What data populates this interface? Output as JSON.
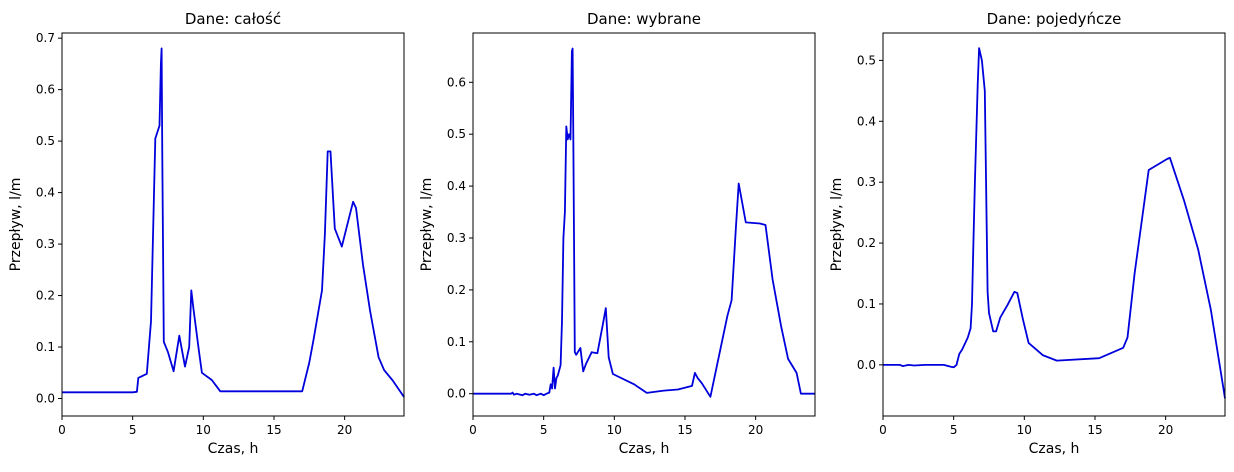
{
  "chart_data": [
    {
      "type": "line",
      "title": "Dane: całość",
      "xlabel": "Czas, h",
      "ylabel": "Przepływ, l/m",
      "xlim": [
        0,
        24.2
      ],
      "ylim": [
        -0.034,
        0.71
      ],
      "xticks": [
        0,
        5,
        10,
        15,
        20
      ],
      "yticks": [
        0.0,
        0.1,
        0.2,
        0.3,
        0.4,
        0.5,
        0.6,
        0.7
      ],
      "ytick_labels": [
        "0.0",
        "0.1",
        "0.2",
        "0.3",
        "0.4",
        "0.5",
        "0.6",
        "0.7"
      ],
      "grid": false,
      "series": [
        {
          "color": "#0000dd",
          "x": [
            0,
            5.0,
            5.3,
            5.4,
            6.0,
            6.3,
            6.6,
            6.9,
            7.0,
            7.05,
            7.1,
            7.2,
            7.5,
            7.9,
            8.3,
            8.7,
            9.0,
            9.15,
            9.3,
            9.7,
            9.9,
            10.6,
            11.2,
            17.0,
            17.5,
            17.8,
            18.4,
            18.6,
            18.8,
            19.0,
            19.1,
            19.3,
            19.8,
            20.3,
            20.6,
            20.8,
            21.3,
            21.8,
            22.4,
            22.8,
            23.4,
            24.2
          ],
          "y": [
            0.012,
            0.012,
            0.013,
            0.04,
            0.048,
            0.15,
            0.505,
            0.53,
            0.65,
            0.68,
            0.47,
            0.11,
            0.09,
            0.053,
            0.122,
            0.062,
            0.1,
            0.21,
            0.175,
            0.09,
            0.05,
            0.036,
            0.014,
            0.014,
            0.07,
            0.115,
            0.21,
            0.32,
            0.48,
            0.48,
            0.43,
            0.33,
            0.295,
            0.35,
            0.382,
            0.37,
            0.26,
            0.17,
            0.08,
            0.055,
            0.035,
            0.003
          ]
        }
      ]
    },
    {
      "type": "line",
      "title": "Dane: wybrane",
      "xlabel": "Czas, h",
      "ylabel": "Przepływ, l/m",
      "xlim": [
        0,
        24.2
      ],
      "ylim": [
        -0.043,
        0.695
      ],
      "xticks": [
        0,
        5,
        10,
        15,
        20
      ],
      "yticks": [
        0.0,
        0.1,
        0.2,
        0.3,
        0.4,
        0.5,
        0.6
      ],
      "ytick_labels": [
        "0.0",
        "0.1",
        "0.2",
        "0.3",
        "0.4",
        "0.5",
        "0.6"
      ],
      "grid": false,
      "series": [
        {
          "color": "#0000dd",
          "x": [
            0,
            2.7,
            2.8,
            2.9,
            3.1,
            3.5,
            3.7,
            4.0,
            4.3,
            4.5,
            4.8,
            5.0,
            5.2,
            5.4,
            5.5,
            5.6,
            5.7,
            5.8,
            5.9,
            6.0,
            6.2,
            6.3,
            6.4,
            6.5,
            6.6,
            6.7,
            6.8,
            6.9,
            7.0,
            7.05,
            7.1,
            7.2,
            7.3,
            7.6,
            7.8,
            8.0,
            8.4,
            8.8,
            9.2,
            9.4,
            9.6,
            9.9,
            11.4,
            12.3,
            13.5,
            14.5,
            15.5,
            15.7,
            15.9,
            16.2,
            16.8,
            18.0,
            18.3,
            18.6,
            18.8,
            19.3,
            20.3,
            20.7,
            21.2,
            21.8,
            22.3,
            22.9,
            23.2,
            24.2
          ],
          "y": [
            0.0,
            0.0,
            0.002,
            -0.002,
            0.0,
            -0.003,
            0.0,
            -0.002,
            0.0,
            -0.003,
            0.0,
            -0.003,
            0.0,
            0.002,
            0.018,
            0.01,
            0.05,
            0.01,
            0.03,
            0.035,
            0.055,
            0.14,
            0.3,
            0.35,
            0.515,
            0.49,
            0.5,
            0.49,
            0.66,
            0.665,
            0.5,
            0.08,
            0.075,
            0.088,
            0.043,
            0.058,
            0.08,
            0.078,
            0.135,
            0.165,
            0.07,
            0.038,
            0.018,
            0.0015,
            0.006,
            0.008,
            0.015,
            0.04,
            0.03,
            0.02,
            -0.006,
            0.15,
            0.18,
            0.32,
            0.405,
            0.33,
            0.328,
            0.325,
            0.22,
            0.13,
            0.067,
            0.04,
            0.0,
            0.0
          ]
        }
      ]
    },
    {
      "type": "line",
      "title": "Dane: pojedyńcze",
      "xlabel": "Czas, h",
      "ylabel": "Przepływ, l/m",
      "xlim": [
        0,
        24.2
      ],
      "ylim": [
        -0.084,
        0.545
      ],
      "xticks": [
        0,
        5,
        10,
        15,
        20
      ],
      "yticks": [
        0.0,
        0.1,
        0.2,
        0.3,
        0.4,
        0.5
      ],
      "ytick_labels": [
        "0.0",
        "0.1",
        "0.2",
        "0.3",
        "0.4",
        "0.5"
      ],
      "grid": false,
      "series": [
        {
          "color": "#0000dd",
          "x": [
            0,
            1.2,
            1.4,
            1.8,
            2.2,
            3.0,
            4.3,
            4.8,
            5.0,
            5.2,
            5.4,
            5.6,
            5.8,
            6.0,
            6.2,
            6.3,
            6.4,
            6.5,
            6.7,
            6.8,
            7.0,
            7.2,
            7.4,
            7.5,
            7.8,
            8.0,
            8.3,
            8.8,
            9.3,
            9.5,
            9.9,
            10.3,
            11.3,
            12.3,
            15.3,
            17.0,
            17.3,
            17.8,
            18.8,
            20.1,
            20.3,
            21.3,
            22.3,
            23.2,
            24.2
          ],
          "y": [
            0.0,
            0.0,
            -0.002,
            0.0,
            -0.001,
            0.0,
            0.0,
            -0.003,
            -0.004,
            0.0,
            0.018,
            0.025,
            0.035,
            0.045,
            0.06,
            0.1,
            0.2,
            0.3,
            0.46,
            0.52,
            0.5,
            0.45,
            0.12,
            0.085,
            0.055,
            0.055,
            0.078,
            0.098,
            0.12,
            0.118,
            0.075,
            0.036,
            0.016,
            0.007,
            0.011,
            0.028,
            0.045,
            0.15,
            0.32,
            0.338,
            0.34,
            0.27,
            0.19,
            0.09,
            -0.055
          ]
        }
      ]
    }
  ]
}
